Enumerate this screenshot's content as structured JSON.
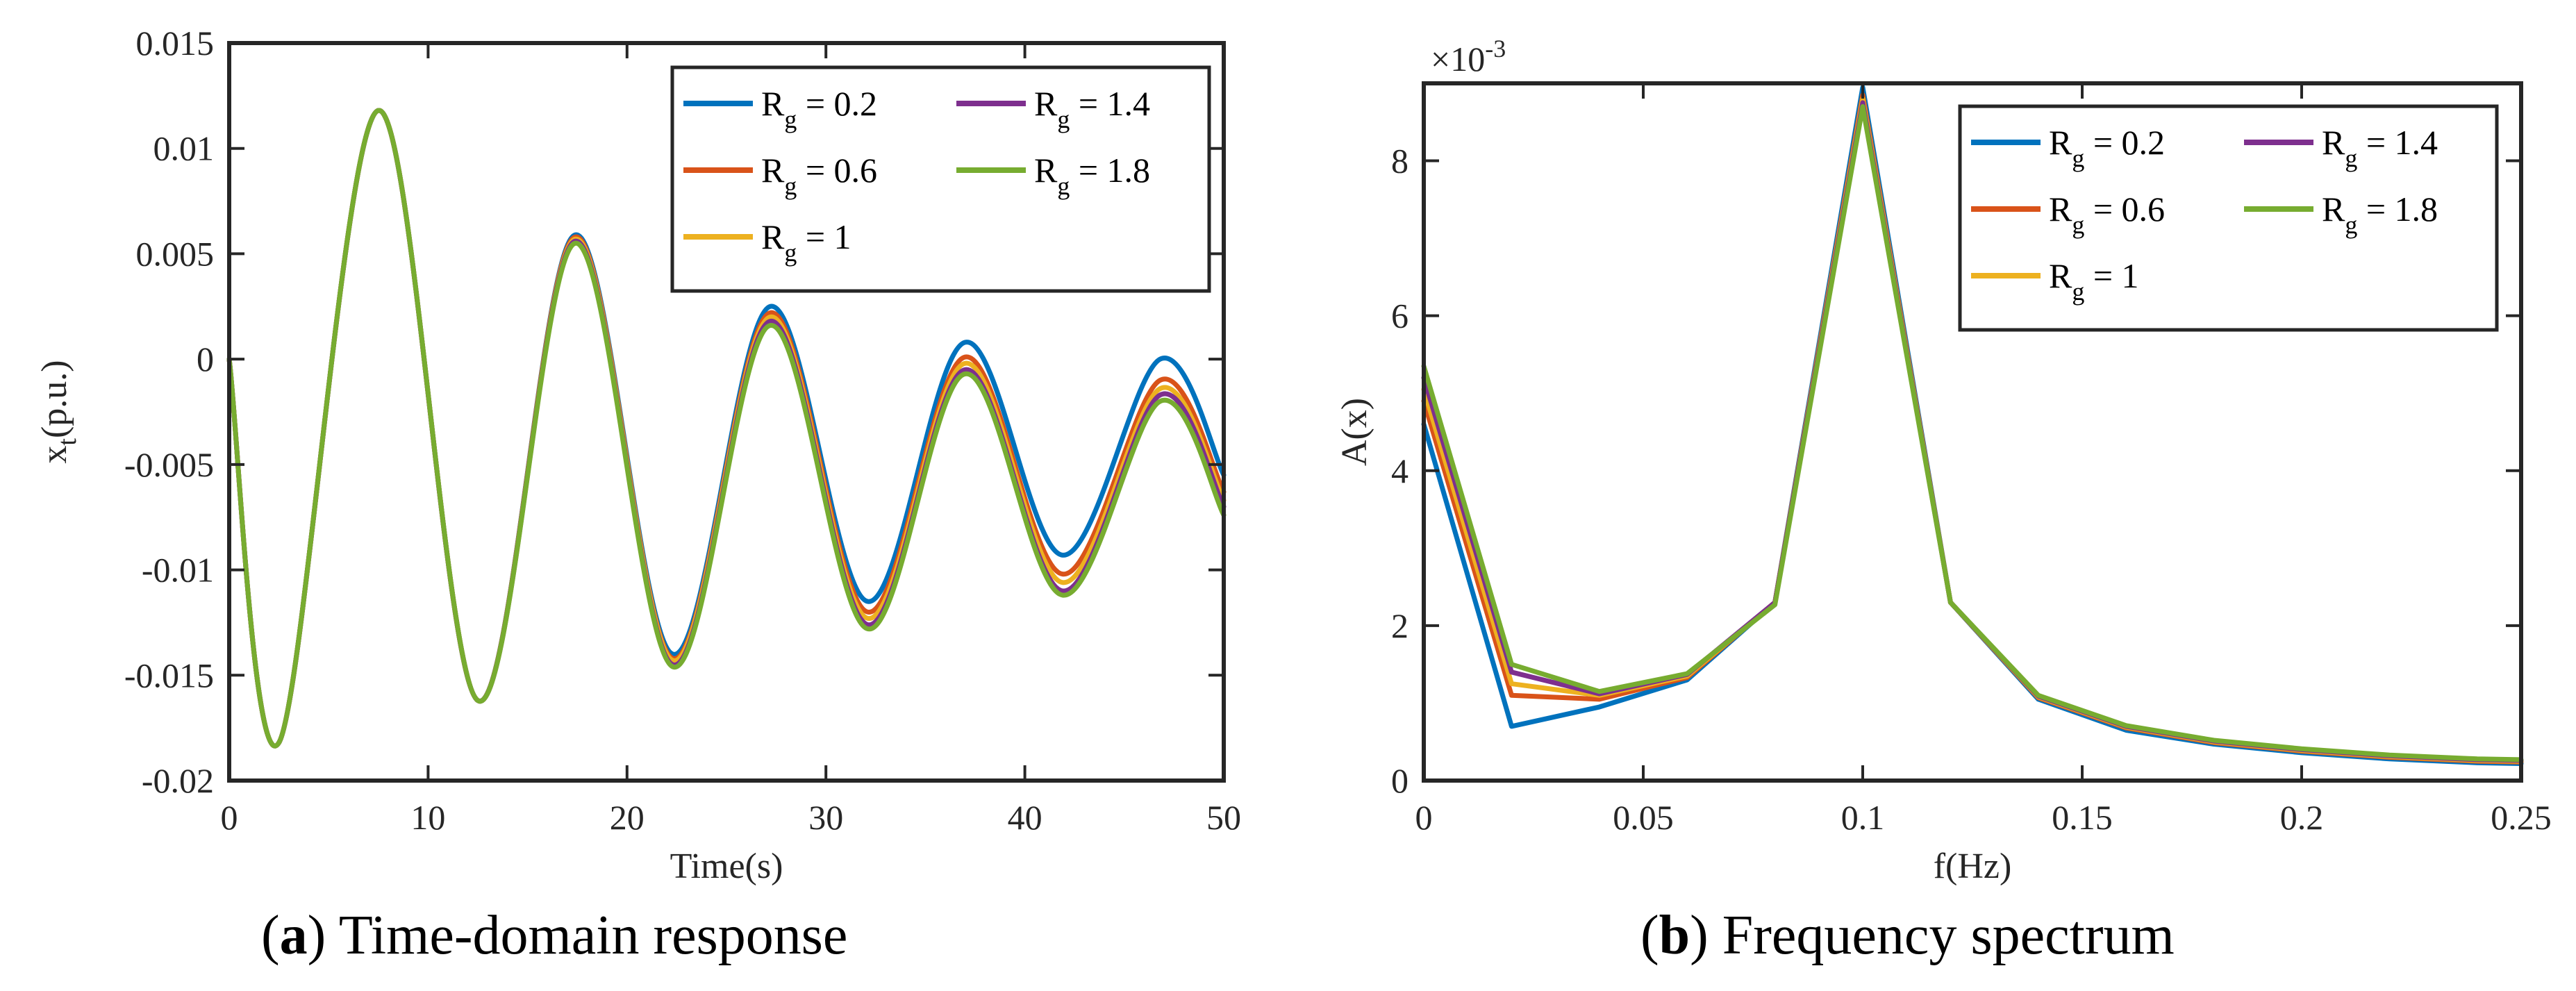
{
  "panel_a": {
    "caption": {
      "label": "a",
      "text": "Time-domain response"
    },
    "chart_data": {
      "type": "line",
      "title": "",
      "xlabel": "Time(s)",
      "ylabel": "x_t(p.u.)",
      "xlim": [
        0,
        50
      ],
      "ylim": [
        -0.02,
        0.015
      ],
      "xticks": [
        0,
        10,
        20,
        30,
        40,
        50
      ],
      "xtick_labels": [
        "0",
        "10",
        "20",
        "30",
        "40",
        "50"
      ],
      "yticks": [
        -0.02,
        -0.015,
        -0.01,
        -0.005,
        0,
        0.005,
        0.01,
        0.015
      ],
      "ytick_labels": [
        "-0.02",
        "-0.015",
        "-0.01",
        "-0.005",
        "0",
        "0.005",
        "0.01",
        "0.015"
      ],
      "grid": false,
      "legend_position": "top-right",
      "x": [
        0,
        2.5,
        7.5,
        12.5,
        17.4,
        22.3,
        27.2,
        32.1,
        37.0,
        41.9,
        46.8,
        50
      ],
      "series": [
        {
          "name": "R_g = 0.2",
          "label_main": "R",
          "label_sub": "g",
          "label_tail": " = 0.2",
          "color": "#0072BD",
          "values": [
            0,
            -0.0182,
            0.0118,
            -0.0162,
            0.0059,
            -0.014,
            0.0025,
            -0.0115,
            0.0008,
            -0.0093,
            0,
            -0.0055
          ]
        },
        {
          "name": "R_g = 0.6",
          "label_main": "R",
          "label_sub": "g",
          "label_tail": " = 0.6",
          "color": "#D95319",
          "values": [
            0,
            -0.0182,
            0.0118,
            -0.0162,
            0.0058,
            -0.0142,
            0.0022,
            -0.012,
            0.0001,
            -0.0102,
            -0.001,
            -0.0063
          ]
        },
        {
          "name": "R_g = 1",
          "label_main": "R",
          "label_sub": "g",
          "label_tail": " = 1",
          "color": "#EDB120",
          "values": [
            0,
            -0.0182,
            0.0118,
            -0.0162,
            0.0057,
            -0.0143,
            0.002,
            -0.0123,
            -0.0002,
            -0.0106,
            -0.0014,
            -0.0067
          ]
        },
        {
          "name": "R_g = 1.4",
          "label_main": "R",
          "label_sub": "g",
          "label_tail": " = 1.4",
          "color": "#7E2F8E",
          "values": [
            0,
            -0.0182,
            0.0118,
            -0.0162,
            0.0056,
            -0.0145,
            0.0018,
            -0.0126,
            -0.0005,
            -0.011,
            -0.0017,
            -0.007
          ]
        },
        {
          "name": "R_g = 1.8",
          "label_main": "R",
          "label_sub": "g",
          "label_tail": " = 1.8",
          "color": "#77AC30",
          "values": [
            0,
            -0.0182,
            0.0118,
            -0.0162,
            0.0055,
            -0.0146,
            0.0016,
            -0.0128,
            -0.0007,
            -0.0112,
            -0.002,
            -0.0074
          ]
        }
      ]
    }
  },
  "panel_b": {
    "caption": {
      "label": "b",
      "text": "Frequency spectrum"
    },
    "chart_data": {
      "type": "line",
      "title": "",
      "xlabel": "f(Hz)",
      "ylabel": "A(x)",
      "scale_label": "×10",
      "scale_exponent": "-3",
      "xlim": [
        0,
        0.25
      ],
      "ylim": [
        0,
        9
      ],
      "xticks": [
        0,
        0.05,
        0.1,
        0.15,
        0.2,
        0.25
      ],
      "xtick_labels": [
        "0",
        "0.05",
        "0.1",
        "0.15",
        "0.2",
        "0.25"
      ],
      "yticks": [
        0,
        2,
        4,
        6,
        8
      ],
      "ytick_labels": [
        "0",
        "2",
        "4",
        "6",
        "8"
      ],
      "grid": false,
      "legend_position": "top-right",
      "x": [
        0,
        0.02,
        0.04,
        0.06,
        0.08,
        0.1,
        0.12,
        0.14,
        0.16,
        0.18,
        0.2,
        0.22,
        0.24,
        0.25
      ],
      "series": [
        {
          "name": "R_g = 0.2",
          "label_main": "R",
          "label_sub": "g",
          "label_tail": " = 0.2",
          "color": "#0072BD",
          "values": [
            4.6,
            0.7,
            0.95,
            1.3,
            2.3,
            8.95,
            2.3,
            1.05,
            0.65,
            0.47,
            0.36,
            0.28,
            0.23,
            0.22
          ]
        },
        {
          "name": "R_g = 0.6",
          "label_main": "R",
          "label_sub": "g",
          "label_tail": " = 0.6",
          "color": "#D95319",
          "values": [
            4.9,
            1.1,
            1.05,
            1.33,
            2.3,
            8.85,
            2.3,
            1.07,
            0.68,
            0.49,
            0.38,
            0.3,
            0.25,
            0.24
          ]
        },
        {
          "name": "R_g = 1",
          "label_main": "R",
          "label_sub": "g",
          "label_tail": " = 1",
          "color": "#EDB120",
          "values": [
            5.05,
            1.25,
            1.1,
            1.35,
            2.3,
            8.8,
            2.3,
            1.08,
            0.69,
            0.5,
            0.39,
            0.31,
            0.26,
            0.25
          ]
        },
        {
          "name": "R_g = 1.4",
          "label_main": "R",
          "label_sub": "g",
          "label_tail": " = 1.4",
          "color": "#7E2F8E",
          "values": [
            5.2,
            1.4,
            1.12,
            1.37,
            2.3,
            8.75,
            2.3,
            1.09,
            0.7,
            0.51,
            0.4,
            0.32,
            0.27,
            0.26
          ]
        },
        {
          "name": "R_g = 1.8",
          "label_main": "R",
          "label_sub": "g",
          "label_tail": " = 1.8",
          "color": "#77AC30",
          "values": [
            5.35,
            1.5,
            1.15,
            1.38,
            2.27,
            8.7,
            2.3,
            1.1,
            0.71,
            0.52,
            0.41,
            0.33,
            0.28,
            0.27
          ]
        }
      ]
    }
  }
}
